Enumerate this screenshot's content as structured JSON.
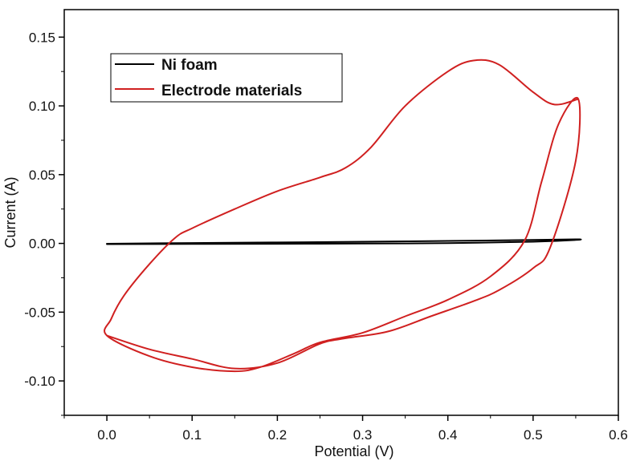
{
  "chart_data": {
    "type": "line",
    "title": "",
    "xlabel": "Potential (V)",
    "ylabel": "Current (A)",
    "xlim": [
      -0.05,
      0.6
    ],
    "ylim": [
      -0.125,
      0.17
    ],
    "xticks": [
      0.0,
      0.1,
      0.2,
      0.3,
      0.4,
      0.5,
      0.6
    ],
    "xtick_labels": [
      "0.0",
      "0.1",
      "0.2",
      "0.3",
      "0.4",
      "0.5",
      "0.6"
    ],
    "yticks": [
      -0.1,
      -0.05,
      0.0,
      0.05,
      0.1,
      0.15
    ],
    "ytick_labels": [
      "-0.10",
      "-0.05",
      "0.00",
      "0.05",
      "0.10",
      "0.15"
    ],
    "grid": false,
    "legend_position": "top-left",
    "series": [
      {
        "name": "Ni foam",
        "color": "#000000",
        "x": [
          0.0,
          0.1,
          0.2,
          0.3,
          0.4,
          0.5,
          0.55,
          0.55,
          0.5,
          0.4,
          0.3,
          0.2,
          0.1,
          0.0
        ],
        "y": [
          -0.0005,
          -0.0004,
          -0.0003,
          -0.0001,
          0.0002,
          0.0012,
          0.0025,
          0.003,
          0.0025,
          0.0018,
          0.0012,
          0.0007,
          0.0003,
          -0.0002
        ]
      },
      {
        "name": "Electrode materials",
        "color": "#d02020",
        "x": [
          0.0,
          0.05,
          0.1,
          0.15,
          0.2,
          0.25,
          0.28,
          0.33,
          0.38,
          0.43,
          0.46,
          0.5,
          0.52,
          0.55,
          0.553,
          0.53,
          0.51,
          0.49,
          0.45,
          0.4,
          0.35,
          0.3,
          0.25,
          0.22,
          0.18,
          0.15,
          0.1,
          0.05,
          0.0,
          0.005,
          0.02,
          0.05,
          0.08,
          0.1,
          0.15,
          0.2,
          0.25,
          0.28,
          0.31,
          0.35,
          0.4,
          0.43,
          0.46,
          0.5,
          0.525,
          0.553
        ],
        "y": [
          -0.067,
          -0.077,
          -0.084,
          -0.091,
          -0.087,
          -0.073,
          -0.069,
          -0.064,
          -0.053,
          -0.042,
          -0.034,
          -0.018,
          -0.003,
          0.06,
          0.105,
          0.087,
          0.045,
          0.002,
          -0.024,
          -0.041,
          -0.053,
          -0.065,
          -0.072,
          -0.08,
          -0.09,
          -0.093,
          -0.09,
          -0.082,
          -0.067,
          -0.055,
          -0.038,
          -0.015,
          0.004,
          0.011,
          0.025,
          0.038,
          0.048,
          0.055,
          0.07,
          0.1,
          0.125,
          0.133,
          0.13,
          0.11,
          0.101,
          0.105
        ]
      }
    ]
  }
}
